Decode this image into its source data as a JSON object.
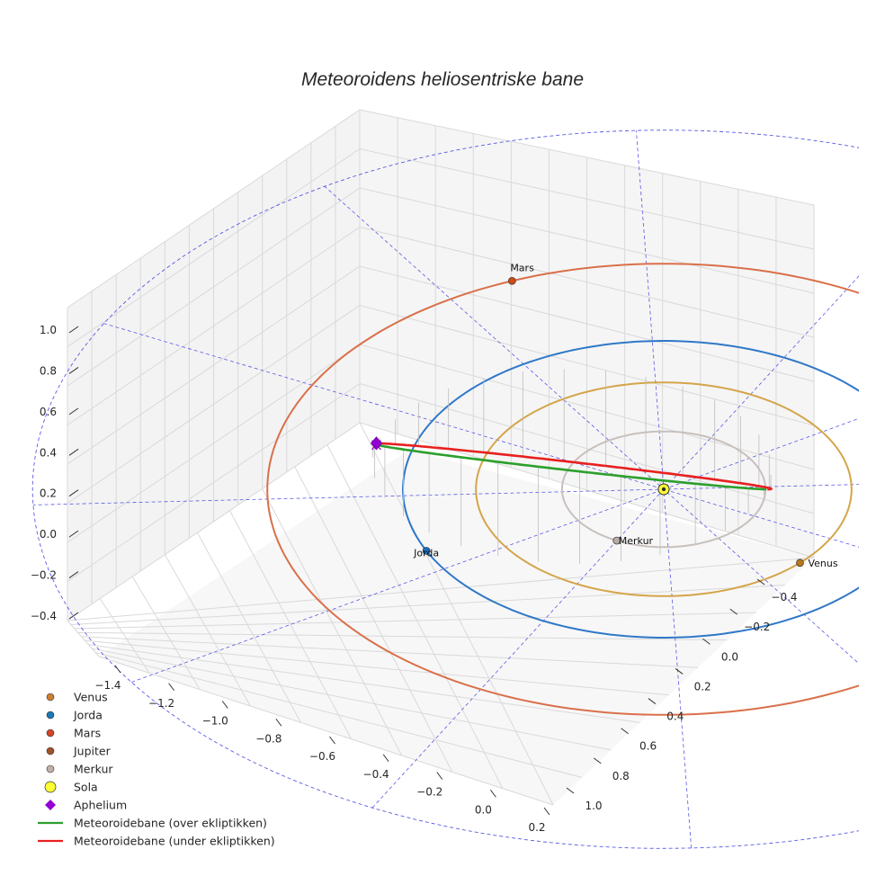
{
  "chart_data": {
    "type": "line3d",
    "title": "Meteoroidens heliosentriske bane",
    "axes": {
      "x_ticks": [
        "−1.4",
        "−1.2",
        "−1.0",
        "−0.8",
        "−0.6",
        "−0.4",
        "−0.2",
        "0.0",
        "0.2"
      ],
      "y_ticks": [
        "−0.4",
        "−0.2",
        "0.0",
        "0.2",
        "0.4",
        "0.6",
        "0.8",
        "1.0"
      ],
      "z_ticks": [
        "−0.4",
        "−0.2",
        "0.0",
        "0.2",
        "0.4",
        "0.6",
        "0.8",
        "1.0"
      ],
      "x_range": [
        -1.5,
        0.25
      ],
      "y_range": [
        -0.5,
        1.05
      ],
      "z_range": [
        -0.5,
        1.1
      ]
    },
    "orbits": [
      {
        "name": "Merkur",
        "radius_au": 0.39,
        "color": "#c8c0bc"
      },
      {
        "name": "Venus",
        "radius_au": 0.72,
        "color": "#d4a54a"
      },
      {
        "name": "Jorda",
        "radius_au": 1.0,
        "color": "#2f78c8"
      },
      {
        "name": "Mars",
        "radius_au": 1.52,
        "color": "#d9704a"
      }
    ],
    "planets": [
      {
        "name": "Mars",
        "color": "#d04a18"
      },
      {
        "name": "Merkur",
        "color": "#b8aca8"
      },
      {
        "name": "Venus",
        "color": "#b87818"
      },
      {
        "name": "Jorda",
        "color": "#1a6ec0"
      }
    ],
    "sun": {
      "name": "Sola",
      "color": "#ffff33"
    },
    "meteoroid": {
      "above_label": "Meteoroidebane (over ekliptikken)",
      "below_label": "Meteoroidebane (under ekliptikken)",
      "above_color": "#2ca02c",
      "below_color": "#e82020",
      "aphelium_label": "Aphelium",
      "aphelium_color": "#9400d3",
      "aphelium_height": 1.05
    },
    "legend": [
      {
        "label": "Venus",
        "kind": "dot",
        "color": "#cd7f32"
      },
      {
        "label": "Jorda",
        "kind": "dot",
        "color": "#1f77b4"
      },
      {
        "label": "Mars",
        "kind": "dot",
        "color": "#d2452a"
      },
      {
        "label": "Jupiter",
        "kind": "dot",
        "color": "#a0522d"
      },
      {
        "label": "Merkur",
        "kind": "dot",
        "color": "#c0b0a8"
      },
      {
        "label": "Sola",
        "kind": "bigdot",
        "color": "#ffff33"
      },
      {
        "label": "Aphelium",
        "kind": "diamond",
        "color": "#9400d3"
      },
      {
        "label": "Meteoroidebane (over ekliptikken)",
        "kind": "line",
        "color": "#2ca02c"
      },
      {
        "label": "Meteoroidebane (under ekliptikken)",
        "kind": "line",
        "color": "#e82020"
      }
    ]
  }
}
